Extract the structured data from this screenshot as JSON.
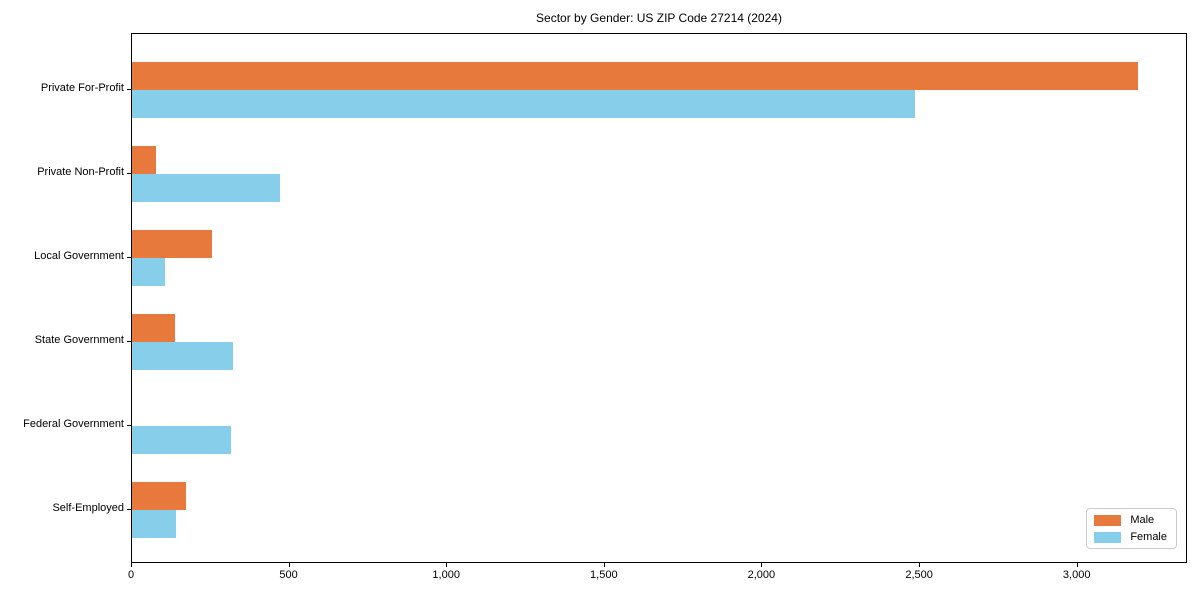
{
  "chart_data": {
    "type": "bar",
    "orientation": "horizontal",
    "title": "Sector by Gender: US ZIP Code 27214 (2024)",
    "categories": [
      "Private For-Profit",
      "Private Non-Profit",
      "Local Government",
      "State Government",
      "Federal Government",
      "Self-Employed"
    ],
    "series": [
      {
        "name": "Male",
        "color": "#e8793d",
        "values": [
          3190,
          75,
          255,
          135,
          0,
          170
        ]
      },
      {
        "name": "Female",
        "color": "#87ceeb",
        "values": [
          2485,
          470,
          105,
          320,
          315,
          140
        ]
      }
    ],
    "xlabel": "",
    "ylabel": "",
    "xlim": [
      0,
      3350
    ],
    "xticks": [
      0,
      500,
      1000,
      1500,
      2000,
      2500,
      3000
    ],
    "xtick_labels": [
      "0",
      "500",
      "1,000",
      "1,500",
      "2,000",
      "2,500",
      "3,000"
    ],
    "grid": false,
    "legend_position": "lower right",
    "background_color": "#ffffff",
    "spine_color": "#000000"
  }
}
